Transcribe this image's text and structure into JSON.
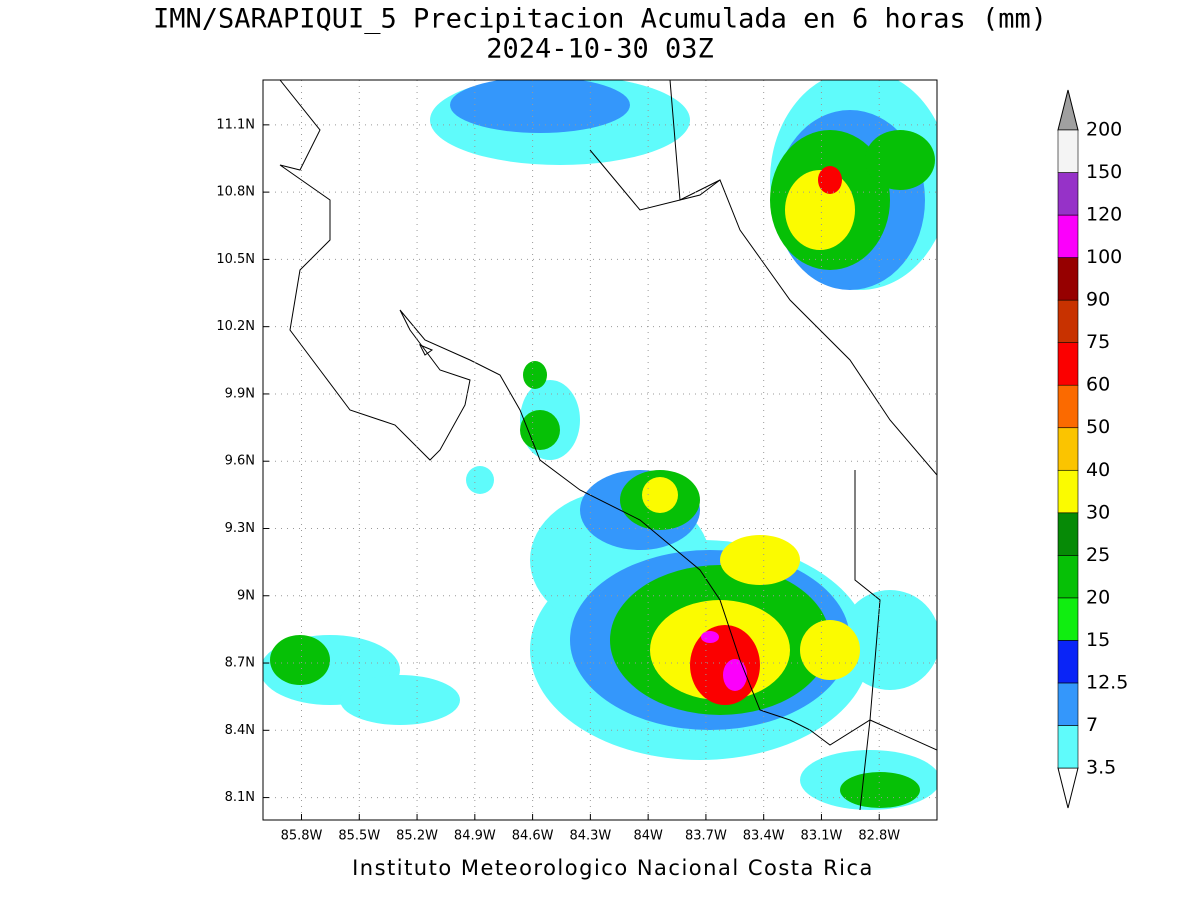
{
  "map": {
    "title": "IMN/SARAPIQUI_5 Precipitacion Acumulada en 6 horas (mm)",
    "subtitle": "2024-10-30 03Z",
    "xlim": [
      -86.0,
      -82.5
    ],
    "ylim": [
      8.0,
      11.3
    ],
    "xticks": [
      {
        "value": -85.8,
        "label": "85.8W"
      },
      {
        "value": -85.5,
        "label": "85.5W"
      },
      {
        "value": -85.2,
        "label": "85.2W"
      },
      {
        "value": -84.9,
        "label": "84.9W"
      },
      {
        "value": -84.6,
        "label": "84.6W"
      },
      {
        "value": -84.3,
        "label": "84.3W"
      },
      {
        "value": -84.0,
        "label": "84W"
      },
      {
        "value": -83.7,
        "label": "83.7W"
      },
      {
        "value": -83.4,
        "label": "83.4W"
      },
      {
        "value": -83.1,
        "label": "83.1W"
      },
      {
        "value": -82.8,
        "label": "82.8W"
      }
    ],
    "yticks": [
      {
        "value": 8.1,
        "label": "8.1N"
      },
      {
        "value": 8.4,
        "label": "8.4N"
      },
      {
        "value": 8.7,
        "label": "8.7N"
      },
      {
        "value": 9.0,
        "label": "9N"
      },
      {
        "value": 9.3,
        "label": "9.3N"
      },
      {
        "value": 9.6,
        "label": "9.6N"
      },
      {
        "value": 9.9,
        "label": "9.9N"
      },
      {
        "value": 10.2,
        "label": "10.2N"
      },
      {
        "value": 10.5,
        "label": "10.5N"
      },
      {
        "value": 10.8,
        "label": "10.8N"
      },
      {
        "value": 11.1,
        "label": "11.1N"
      }
    ],
    "grid": true,
    "colorbar": {
      "levels": [
        3.5,
        7,
        12.5,
        15,
        20,
        25,
        30,
        40,
        50,
        60,
        75,
        90,
        100,
        120,
        150,
        200
      ],
      "colors": [
        "#5ffbfb",
        "#3497fb",
        "#0a24f7",
        "#10ee10",
        "#06c006",
        "#068a06",
        "#fbfb00",
        "#fbc400",
        "#fb6a00",
        "#fb0000",
        "#c83200",
        "#960000",
        "#fb00fb",
        "#9632c8",
        "#f4f4f4"
      ]
    },
    "footer": "Instituto Meteorologico Nacional Costa Rica"
  }
}
